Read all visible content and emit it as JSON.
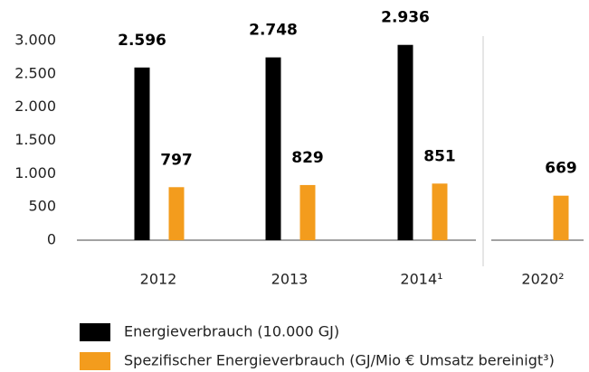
{
  "chart_data": {
    "type": "bar",
    "categories": [
      "2012",
      "2013",
      "2014¹",
      "2020²"
    ],
    "series": [
      {
        "name": "Energieverbrauch (10.000 GJ)",
        "color": "#000000",
        "values": [
          2596,
          2748,
          2936,
          null
        ],
        "value_labels": [
          "2.596",
          "2.748",
          "2.936",
          null
        ]
      },
      {
        "name": "Spezifischer Energieverbrauch (GJ/Mio € Umsatz bereinigt³)",
        "color": "#f39c1d",
        "values": [
          797,
          829,
          851,
          669
        ]
      }
    ],
    "ylim": [
      0,
      3000
    ],
    "yticks": [
      {
        "value": 0,
        "label": "0"
      },
      {
        "value": 500,
        "label": "500"
      },
      {
        "value": 1000,
        "label": "1.000"
      },
      {
        "value": 1500,
        "label": "1.500"
      },
      {
        "value": 2000,
        "label": "2.000"
      },
      {
        "value": 2500,
        "label": "2.500"
      },
      {
        "value": 3000,
        "label": "3.000"
      }
    ],
    "grid": false
  }
}
